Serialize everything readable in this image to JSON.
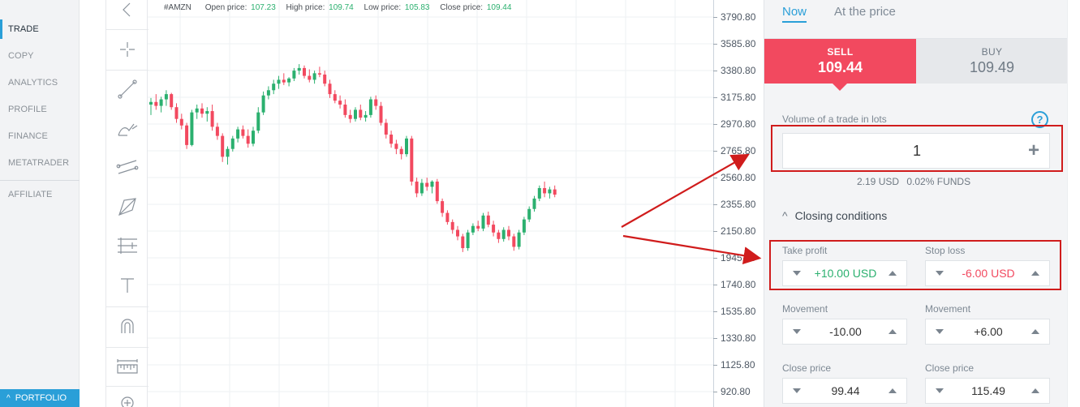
{
  "nav": {
    "items": [
      "TRADE",
      "COPY",
      "ANALYTICS",
      "PROFILE",
      "FINANCE",
      "METATRADER"
    ],
    "affiliate": "AFFILIATE",
    "portfolio": "PORTFOLIO",
    "active_item": "TRADE"
  },
  "tools": {
    "icons": [
      "back-icon",
      "crosshair-icon",
      "trend-line-icon",
      "brush-icon",
      "parallel-channel-icon",
      "pattern-icon",
      "fib-retracement-icon",
      "text-icon",
      "magnet-icon",
      "ruler-icon",
      "zoom-icon"
    ]
  },
  "chart_info": {
    "symbol": "#AMZN",
    "open_label": "Open price:",
    "open_value": "107.23",
    "high_label": "High price:",
    "high_value": "109.74",
    "low_label": "Low price:",
    "low_value": "105.83",
    "close_label": "Close price:",
    "close_value": "109.44"
  },
  "price_axis": {
    "ticks": [
      "3790.80",
      "3585.80",
      "3380.80",
      "3175.80",
      "2970.80",
      "2765.80",
      "2560.80",
      "2355.80",
      "2150.80",
      "1945.80",
      "1740.80",
      "1535.80",
      "1330.80",
      "1125.80",
      "920.80"
    ]
  },
  "chart_data": {
    "type": "candlestick",
    "symbol": "#AMZN",
    "y_ticks": [
      3790.8,
      3585.8,
      3380.8,
      3175.8,
      2970.8,
      2765.8,
      2560.8,
      2355.8,
      2150.8,
      1945.8,
      1740.8,
      1535.8,
      1330.8,
      1125.8,
      920.8
    ],
    "ylim": [
      830,
      3850
    ],
    "up_color": "#2bb06f",
    "down_color": "#f2495f",
    "grid": true,
    "candles": [
      [
        3120,
        3170,
        3040,
        3140
      ],
      [
        3140,
        3200,
        3080,
        3110
      ],
      [
        3110,
        3180,
        3060,
        3160
      ],
      [
        3160,
        3230,
        3110,
        3200
      ],
      [
        3200,
        3210,
        3080,
        3100
      ],
      [
        3100,
        3130,
        2980,
        3010
      ],
      [
        3010,
        3050,
        2930,
        2960
      ],
      [
        2960,
        2980,
        2780,
        2810
      ],
      [
        2810,
        3080,
        2800,
        3060
      ],
      [
        3060,
        3120,
        3010,
        3090
      ],
      [
        3090,
        3130,
        3020,
        3050
      ],
      [
        3050,
        3100,
        2990,
        3070
      ],
      [
        3070,
        3120,
        2920,
        2950
      ],
      [
        2950,
        2980,
        2850,
        2880
      ],
      [
        2880,
        2900,
        2680,
        2720
      ],
      [
        2720,
        2800,
        2660,
        2780
      ],
      [
        2780,
        2880,
        2760,
        2860
      ],
      [
        2860,
        2950,
        2830,
        2930
      ],
      [
        2930,
        2960,
        2860,
        2880
      ],
      [
        2880,
        2930,
        2790,
        2820
      ],
      [
        2820,
        2950,
        2800,
        2920
      ],
      [
        2920,
        3100,
        2900,
        3060
      ],
      [
        3060,
        3220,
        3040,
        3190
      ],
      [
        3190,
        3260,
        3160,
        3230
      ],
      [
        3230,
        3310,
        3200,
        3280
      ],
      [
        3280,
        3340,
        3240,
        3310
      ],
      [
        3310,
        3360,
        3270,
        3290
      ],
      [
        3290,
        3330,
        3260,
        3320
      ],
      [
        3320,
        3400,
        3300,
        3380
      ],
      [
        3380,
        3430,
        3350,
        3400
      ],
      [
        3400,
        3420,
        3320,
        3340
      ],
      [
        3340,
        3390,
        3290,
        3310
      ],
      [
        3310,
        3380,
        3280,
        3360
      ],
      [
        3360,
        3410,
        3330,
        3350
      ],
      [
        3350,
        3380,
        3260,
        3280
      ],
      [
        3280,
        3310,
        3170,
        3200
      ],
      [
        3200,
        3230,
        3130,
        3150
      ],
      [
        3150,
        3190,
        3090,
        3120
      ],
      [
        3120,
        3160,
        3020,
        3040
      ],
      [
        3040,
        3080,
        2980,
        3010
      ],
      [
        3010,
        3100,
        2990,
        3080
      ],
      [
        3080,
        3120,
        3000,
        3020
      ],
      [
        3020,
        3070,
        2990,
        3040
      ],
      [
        3040,
        3180,
        3020,
        3160
      ],
      [
        3160,
        3190,
        3080,
        3110
      ],
      [
        3110,
        3140,
        2960,
        2980
      ],
      [
        2980,
        3010,
        2860,
        2890
      ],
      [
        2890,
        2920,
        2790,
        2820
      ],
      [
        2820,
        2850,
        2740,
        2780
      ],
      [
        2780,
        2800,
        2700,
        2740
      ],
      [
        2740,
        2880,
        2720,
        2860
      ],
      [
        2860,
        2880,
        2500,
        2530
      ],
      [
        2530,
        2560,
        2410,
        2440
      ],
      [
        2440,
        2550,
        2420,
        2520
      ],
      [
        2520,
        2560,
        2460,
        2490
      ],
      [
        2490,
        2540,
        2440,
        2530
      ],
      [
        2530,
        2550,
        2360,
        2380
      ],
      [
        2380,
        2400,
        2260,
        2290
      ],
      [
        2290,
        2310,
        2200,
        2220
      ],
      [
        2220,
        2240,
        2130,
        2160
      ],
      [
        2160,
        2190,
        2080,
        2110
      ],
      [
        2110,
        2130,
        1990,
        2020
      ],
      [
        2020,
        2160,
        2000,
        2140
      ],
      [
        2140,
        2210,
        2120,
        2190
      ],
      [
        2190,
        2230,
        2150,
        2170
      ],
      [
        2170,
        2290,
        2150,
        2270
      ],
      [
        2270,
        2300,
        2180,
        2200
      ],
      [
        2200,
        2230,
        2110,
        2140
      ],
      [
        2140,
        2160,
        2060,
        2090
      ],
      [
        2090,
        2180,
        2070,
        2160
      ],
      [
        2160,
        2190,
        2080,
        2110
      ],
      [
        2110,
        2130,
        2000,
        2030
      ],
      [
        2030,
        2160,
        2010,
        2140
      ],
      [
        2140,
        2260,
        2120,
        2240
      ],
      [
        2240,
        2340,
        2220,
        2320
      ],
      [
        2320,
        2420,
        2300,
        2400
      ],
      [
        2400,
        2500,
        2380,
        2480
      ],
      [
        2480,
        2530,
        2410,
        2440
      ],
      [
        2440,
        2490,
        2400,
        2470
      ],
      [
        2470,
        2500,
        2410,
        2430
      ]
    ]
  },
  "panel": {
    "tabs": [
      "Now",
      "At the price"
    ],
    "sell_label": "SELL",
    "sell_price": "109.44",
    "buy_label": "BUY",
    "buy_price": "109.49",
    "volume_label": "Volume of a trade in lots",
    "volume_value": "1",
    "funds_usd": "2.19 USD",
    "funds_pct": "0.02% FUNDS",
    "closing_conditions": "Closing conditions",
    "take_profit_label": "Take profit",
    "take_profit_value": "+10.00 USD",
    "take_profit_color": "#2bb06f",
    "stop_loss_label": "Stop loss",
    "stop_loss_value": "-6.00 USD",
    "stop_loss_color": "#f2495f",
    "movement_label": "Movement",
    "movement_left": "-10.00",
    "movement_right": "+6.00",
    "close_price_label": "Close price",
    "close_price_left": "99.44",
    "close_price_right": "115.49"
  },
  "colors": {
    "accent": "#2a9fd8",
    "sell": "#f2495f",
    "annotation": "#d01c1c"
  }
}
